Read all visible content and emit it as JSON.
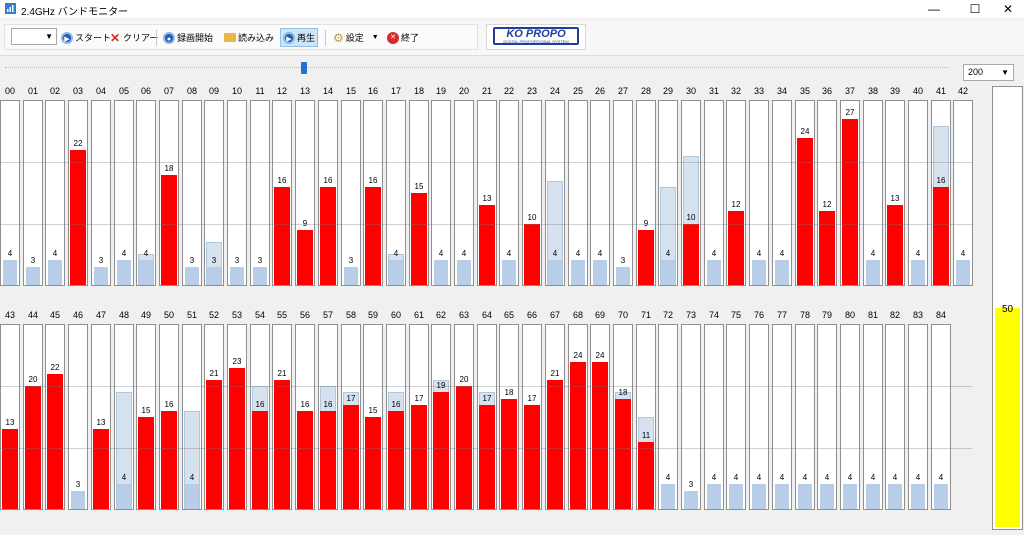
{
  "window": {
    "title": "2.4GHz バンドモニター",
    "minimize": "—",
    "maximize": "☐",
    "close": "✕"
  },
  "toolbar": {
    "start": "スタート",
    "clear": "クリアー",
    "record": "録画開始",
    "load": "読み込み",
    "play": "再生",
    "settings": "設定",
    "exit": "終了"
  },
  "logo": {
    "main": "KO PROPO",
    "sub": "DIGITAL PROPORTIONAL SYSTEM"
  },
  "zoom": {
    "selected": "200"
  },
  "meter": {
    "value": "50",
    "fill_fraction": 0.5
  },
  "scale_max": 30,
  "channels_row1": [
    {
      "ch": "00",
      "val": 4,
      "peak": 4
    },
    {
      "ch": "01",
      "val": 3,
      "peak": 3
    },
    {
      "ch": "02",
      "val": 4,
      "peak": 4
    },
    {
      "ch": "03",
      "val": 22,
      "peak": 22,
      "red": true
    },
    {
      "ch": "04",
      "val": 3,
      "peak": 3
    },
    {
      "ch": "05",
      "val": 4,
      "peak": 4
    },
    {
      "ch": "06",
      "val": 4,
      "peak": 5
    },
    {
      "ch": "07",
      "val": 18,
      "peak": 18,
      "red": true
    },
    {
      "ch": "08",
      "val": 3,
      "peak": 3
    },
    {
      "ch": "09",
      "val": 3,
      "peak": 7
    },
    {
      "ch": "10",
      "val": 3,
      "peak": 3
    },
    {
      "ch": "11",
      "val": 3,
      "peak": 3
    },
    {
      "ch": "12",
      "val": 16,
      "peak": 16,
      "red": true
    },
    {
      "ch": "13",
      "val": 9,
      "peak": 9,
      "red": true
    },
    {
      "ch": "14",
      "val": 16,
      "peak": 16,
      "red": true
    },
    {
      "ch": "15",
      "val": 3,
      "peak": 3
    },
    {
      "ch": "16",
      "val": 16,
      "peak": 16,
      "red": true
    },
    {
      "ch": "17",
      "val": 4,
      "peak": 5
    },
    {
      "ch": "18",
      "val": 15,
      "peak": 15,
      "red": true
    },
    {
      "ch": "19",
      "val": 4,
      "peak": 4
    },
    {
      "ch": "20",
      "val": 4,
      "peak": 4
    },
    {
      "ch": "21",
      "val": 13,
      "peak": 13,
      "red": true
    },
    {
      "ch": "22",
      "val": 4,
      "peak": 4
    },
    {
      "ch": "23",
      "val": 10,
      "peak": 10,
      "red": true
    },
    {
      "ch": "24",
      "val": 4,
      "peak": 17
    },
    {
      "ch": "25",
      "val": 4,
      "peak": 4
    },
    {
      "ch": "26",
      "val": 4,
      "peak": 4
    },
    {
      "ch": "27",
      "val": 3,
      "peak": 3
    },
    {
      "ch": "28",
      "val": 9,
      "peak": 9,
      "red": true
    },
    {
      "ch": "29",
      "val": 4,
      "peak": 16
    },
    {
      "ch": "30",
      "val": 10,
      "peak": 21,
      "red": true
    },
    {
      "ch": "31",
      "val": 4,
      "peak": 4
    },
    {
      "ch": "32",
      "val": 12,
      "peak": 12,
      "red": true
    },
    {
      "ch": "33",
      "val": 4,
      "peak": 4
    },
    {
      "ch": "34",
      "val": 4,
      "peak": 4
    },
    {
      "ch": "35",
      "val": 24,
      "peak": 24,
      "red": true
    },
    {
      "ch": "36",
      "val": 12,
      "peak": 12,
      "red": true
    },
    {
      "ch": "37",
      "val": 27,
      "peak": 27,
      "red": true
    },
    {
      "ch": "38",
      "val": 4,
      "peak": 4
    },
    {
      "ch": "39",
      "val": 13,
      "peak": 13,
      "red": true
    },
    {
      "ch": "40",
      "val": 4,
      "peak": 4
    },
    {
      "ch": "41",
      "val": 16,
      "peak": 26,
      "red": true
    },
    {
      "ch": "42",
      "val": 4,
      "peak": 4
    }
  ],
  "channels_row2": [
    {
      "ch": "43",
      "val": 13,
      "peak": 13,
      "red": true
    },
    {
      "ch": "44",
      "val": 20,
      "peak": 20,
      "red": true
    },
    {
      "ch": "45",
      "val": 22,
      "peak": 22,
      "red": true
    },
    {
      "ch": "46",
      "val": 3,
      "peak": 3
    },
    {
      "ch": "47",
      "val": 13,
      "peak": 13,
      "red": true
    },
    {
      "ch": "48",
      "val": 4,
      "peak": 19
    },
    {
      "ch": "49",
      "val": 15,
      "peak": 15,
      "red": true
    },
    {
      "ch": "50",
      "val": 16,
      "peak": 16,
      "red": true
    },
    {
      "ch": "51",
      "val": 4,
      "peak": 16
    },
    {
      "ch": "52",
      "val": 21,
      "peak": 21,
      "red": true
    },
    {
      "ch": "53",
      "val": 23,
      "peak": 23,
      "red": true
    },
    {
      "ch": "54",
      "val": 16,
      "peak": 20,
      "red": true
    },
    {
      "ch": "55",
      "val": 21,
      "peak": 21,
      "red": true
    },
    {
      "ch": "56",
      "val": 16,
      "peak": 16,
      "red": true
    },
    {
      "ch": "57",
      "val": 16,
      "peak": 20,
      "red": true
    },
    {
      "ch": "58",
      "val": 17,
      "peak": 19,
      "red": true
    },
    {
      "ch": "59",
      "val": 15,
      "peak": 15,
      "red": true
    },
    {
      "ch": "60",
      "val": 16,
      "peak": 19,
      "red": true
    },
    {
      "ch": "61",
      "val": 17,
      "peak": 17,
      "red": true
    },
    {
      "ch": "62",
      "val": 19,
      "peak": 21,
      "red": true
    },
    {
      "ch": "63",
      "val": 20,
      "peak": 20,
      "red": true
    },
    {
      "ch": "64",
      "val": 17,
      "peak": 19,
      "red": true
    },
    {
      "ch": "65",
      "val": 18,
      "peak": 18,
      "red": true
    },
    {
      "ch": "66",
      "val": 17,
      "peak": 17,
      "red": true
    },
    {
      "ch": "67",
      "val": 21,
      "peak": 21,
      "red": true
    },
    {
      "ch": "68",
      "val": 24,
      "peak": 24,
      "red": true
    },
    {
      "ch": "69",
      "val": 24,
      "peak": 24,
      "red": true
    },
    {
      "ch": "70",
      "val": 18,
      "peak": 19,
      "red": true
    },
    {
      "ch": "71",
      "val": 11,
      "peak": 15,
      "red": true
    },
    {
      "ch": "72",
      "val": 4,
      "peak": 4
    },
    {
      "ch": "73",
      "val": 3,
      "peak": 3
    },
    {
      "ch": "74",
      "val": 4,
      "peak": 4
    },
    {
      "ch": "75",
      "val": 4,
      "peak": 4
    },
    {
      "ch": "76",
      "val": 4,
      "peak": 4
    },
    {
      "ch": "77",
      "val": 4,
      "peak": 4
    },
    {
      "ch": "78",
      "val": 4,
      "peak": 4
    },
    {
      "ch": "79",
      "val": 4,
      "peak": 4
    },
    {
      "ch": "80",
      "val": 4,
      "peak": 4
    },
    {
      "ch": "81",
      "val": 4,
      "peak": 4
    },
    {
      "ch": "82",
      "val": 4,
      "peak": 4
    },
    {
      "ch": "83",
      "val": 4,
      "peak": 4
    },
    {
      "ch": "84",
      "val": 4,
      "peak": 4
    }
  ],
  "colors": {
    "active": "#ff0000",
    "idle": "#b7cde8",
    "peak": "#d6e3ef",
    "meter": "#ffff00"
  }
}
